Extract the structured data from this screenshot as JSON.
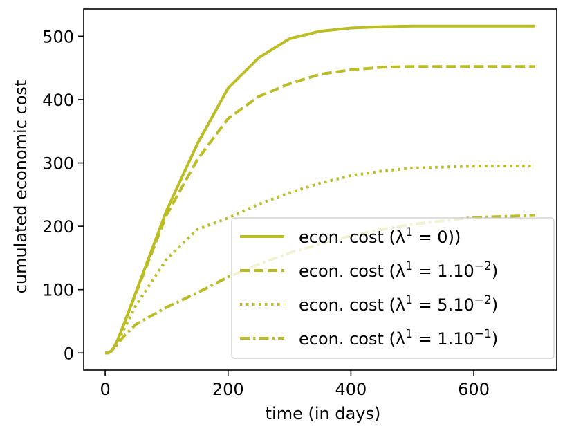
{
  "chart_data": {
    "type": "line",
    "title": "",
    "xlabel": "time (in days)",
    "ylabel": "cumulated economic cost",
    "xlim": [
      -35,
      735
    ],
    "ylim": [
      -27,
      543
    ],
    "xticks": [
      0,
      200,
      400,
      600
    ],
    "yticks": [
      0,
      100,
      200,
      300,
      400,
      500
    ],
    "grid": false,
    "legend_position": "lower-right",
    "line_color": "#bcbd22",
    "series": [
      {
        "name": "econ. cost (λ¹ = 0)",
        "label_parts": [
          "econ. cost (λ",
          "1",
          " = 0)",
          ""
        ],
        "dash": "solid",
        "points": [
          [
            0,
            0
          ],
          [
            5,
            0
          ],
          [
            10,
            3
          ],
          [
            15,
            10
          ],
          [
            20,
            20
          ],
          [
            30,
            44
          ],
          [
            50,
            96
          ],
          [
            100,
            225
          ],
          [
            150,
            330
          ],
          [
            200,
            418
          ],
          [
            250,
            466
          ],
          [
            300,
            496
          ],
          [
            350,
            508
          ],
          [
            400,
            513
          ],
          [
            450,
            515
          ],
          [
            500,
            516
          ],
          [
            600,
            516
          ],
          [
            700,
            516
          ]
        ]
      },
      {
        "name": "econ. cost (λ¹ = 1.10⁻²)",
        "label_parts": [
          "econ. cost (λ",
          "1",
          " = 1.10",
          "−2"
        ],
        "dash": "dashed",
        "points": [
          [
            0,
            0
          ],
          [
            5,
            0
          ],
          [
            10,
            3
          ],
          [
            15,
            10
          ],
          [
            20,
            20
          ],
          [
            30,
            44
          ],
          [
            50,
            94
          ],
          [
            100,
            218
          ],
          [
            150,
            305
          ],
          [
            200,
            370
          ],
          [
            250,
            405
          ],
          [
            300,
            425
          ],
          [
            350,
            440
          ],
          [
            400,
            447
          ],
          [
            450,
            451
          ],
          [
            500,
            452
          ],
          [
            600,
            452
          ],
          [
            700,
            452
          ]
        ]
      },
      {
        "name": "econ. cost (λ¹ = 5.10⁻²)",
        "label_parts": [
          "econ. cost (λ",
          "1",
          " = 5.10",
          "−2"
        ],
        "dash": "dotted",
        "points": [
          [
            0,
            0
          ],
          [
            5,
            0
          ],
          [
            10,
            3
          ],
          [
            15,
            10
          ],
          [
            20,
            18
          ],
          [
            30,
            36
          ],
          [
            50,
            75
          ],
          [
            100,
            148
          ],
          [
            150,
            195
          ],
          [
            200,
            213
          ],
          [
            250,
            235
          ],
          [
            300,
            253
          ],
          [
            350,
            268
          ],
          [
            400,
            280
          ],
          [
            450,
            287
          ],
          [
            500,
            292
          ],
          [
            600,
            295
          ],
          [
            700,
            295
          ]
        ]
      },
      {
        "name": "econ. cost (λ¹ = 1.10⁻¹)",
        "label_parts": [
          "econ. cost (λ",
          "1",
          " = 1.10",
          "−1"
        ],
        "dash": "dashdot",
        "points": [
          [
            0,
            0
          ],
          [
            5,
            0
          ],
          [
            10,
            3
          ],
          [
            15,
            8
          ],
          [
            20,
            14
          ],
          [
            30,
            26
          ],
          [
            50,
            45
          ],
          [
            100,
            72
          ],
          [
            150,
            95
          ],
          [
            200,
            120
          ],
          [
            250,
            140
          ],
          [
            300,
            158
          ],
          [
            350,
            172
          ],
          [
            400,
            185
          ],
          [
            450,
            195
          ],
          [
            500,
            203
          ],
          [
            600,
            214
          ],
          [
            700,
            217
          ]
        ]
      }
    ]
  }
}
